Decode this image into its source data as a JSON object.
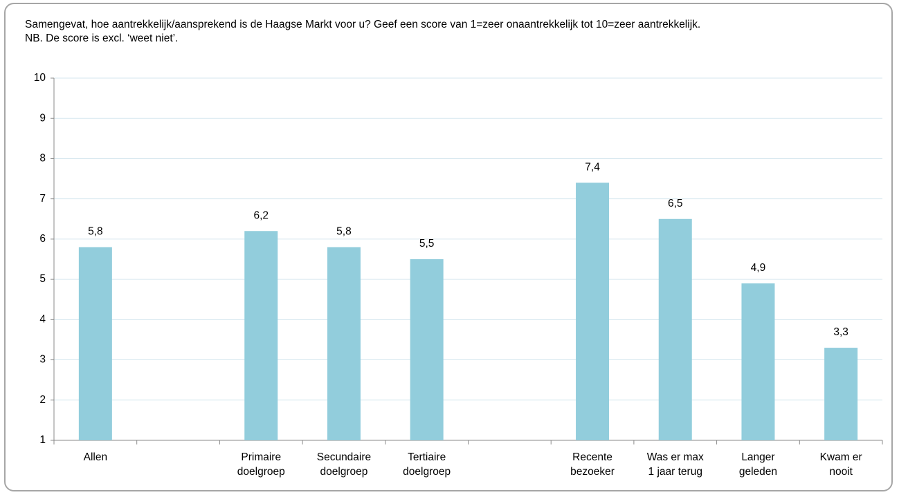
{
  "chart_data": {
    "type": "bar",
    "title": "Samengevat, hoe aantrekkelijk/aansprekend is de Haagse Markt voor u? Geef een score van 1=zeer onaantrekkelijk tot 10=zeer aantrekkelijk. NB. De score is excl. ‘weet niet’.",
    "categories": [
      "Allen",
      null,
      "Primaire\ndoelgroep",
      "Secundaire\ndoelgroep",
      "Tertiaire\ndoelgroep",
      null,
      "Recente\nbezoeker",
      "Was er max\n1 jaar terug",
      "Langer\ngeleden",
      "Kwam er\nnooit"
    ],
    "values": [
      5.8,
      null,
      6.2,
      5.8,
      5.5,
      null,
      7.4,
      6.5,
      4.9,
      3.3
    ],
    "value_labels": [
      "5,8",
      null,
      "6,2",
      "5,8",
      "5,5",
      null,
      "7,4",
      "6,5",
      "4,9",
      "3,3"
    ],
    "color": "#92cddc",
    "ylim": [
      1,
      10
    ],
    "yticks": [
      1,
      2,
      3,
      4,
      5,
      6,
      7,
      8,
      9,
      10
    ],
    "grid": true
  }
}
